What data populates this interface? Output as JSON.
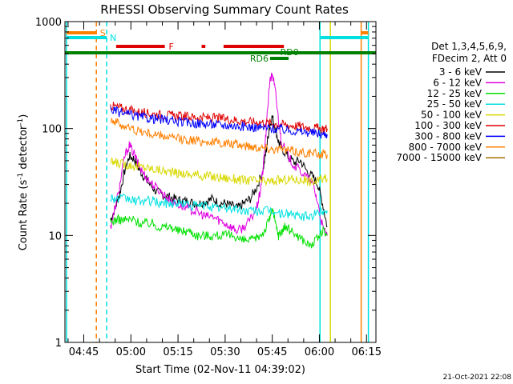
{
  "chart_data": {
    "type": "line",
    "title": "RHESSI Observing Summary Count Rates",
    "xlabel": "Start Time (02-Nov-11 04:39:02)",
    "ylabel_main": "Count Rate (s",
    "ylabel_sup1": "-1",
    "ylabel_mid": " detector",
    "ylabel_sup2": "-1",
    "ylabel_end": ")",
    "x_unit": "minutes since 04:39:02",
    "xlim": [
      0,
      99
    ],
    "ylim": [
      1,
      1000
    ],
    "yscale": "log",
    "xticks": [
      {
        "v": 6,
        "label": "04:45"
      },
      {
        "v": 21,
        "label": "05:00"
      },
      {
        "v": 36,
        "label": "05:15"
      },
      {
        "v": 51,
        "label": "05:30"
      },
      {
        "v": 66,
        "label": "05:45"
      },
      {
        "v": 81,
        "label": "06:00"
      },
      {
        "v": 96,
        "label": "06:15"
      }
    ],
    "yticks": [
      {
        "v": 1,
        "label": "1"
      },
      {
        "v": 10,
        "label": "10"
      },
      {
        "v": 100,
        "label": "100"
      },
      {
        "v": 1000,
        "label": "1000"
      }
    ],
    "legend_header": [
      "Det 1,3,4,5,6,9,",
      "FDecim 2, Att 0"
    ],
    "series": [
      {
        "name": "3 - 6 keV",
        "color": "#000000",
        "x": [
          14.5,
          16,
          17.5,
          19,
          20.5,
          22,
          23.5,
          25,
          27,
          29,
          31,
          33,
          35,
          37,
          39,
          41,
          43,
          45,
          47,
          49,
          51,
          53,
          55,
          57,
          59,
          61,
          63,
          64,
          65,
          66,
          67,
          68,
          69,
          71,
          73,
          75,
          77,
          79,
          80.5,
          82,
          83.5
        ],
        "y": [
          14,
          18,
          25,
          40,
          55,
          52,
          42,
          36,
          30,
          26,
          24,
          23,
          22,
          21,
          21,
          20,
          20,
          21,
          22,
          20,
          20,
          19,
          18,
          20,
          22,
          28,
          40,
          60,
          100,
          130,
          100,
          75,
          65,
          55,
          48,
          50,
          40,
          35,
          30,
          20,
          12
        ]
      },
      {
        "name": "6 - 12 keV",
        "color": "#e000e0",
        "x": [
          14.5,
          16,
          17.5,
          19,
          20.5,
          22,
          23.5,
          25,
          27,
          29,
          31,
          33,
          35,
          37,
          39,
          41,
          43,
          45,
          47,
          49,
          51,
          53,
          55,
          57,
          59,
          61,
          62,
          63,
          64,
          65,
          66,
          67,
          68,
          69,
          71,
          73,
          75,
          77,
          79,
          80.5,
          82,
          83.5
        ],
        "y": [
          12,
          18,
          30,
          55,
          70,
          58,
          45,
          38,
          32,
          28,
          25,
          22,
          20,
          19,
          18,
          17,
          16,
          15,
          15,
          14,
          13,
          12,
          11,
          12,
          14,
          18,
          24,
          40,
          90,
          250,
          330,
          220,
          120,
          75,
          55,
          45,
          40,
          35,
          30,
          20,
          12,
          10
        ]
      },
      {
        "name": "12 - 25 keV",
        "color": "#00e000",
        "x": [
          14.5,
          16,
          18,
          20,
          22,
          24,
          26,
          28,
          30,
          32,
          34,
          36,
          38,
          40,
          42,
          44,
          46,
          48,
          50,
          52,
          54,
          56,
          58,
          60,
          62,
          63.5,
          65,
          66,
          67,
          68,
          69,
          70,
          72,
          74,
          76,
          78,
          80,
          82,
          83.5
        ],
        "y": [
          13,
          14,
          14,
          14,
          14,
          13,
          13,
          13,
          12,
          12,
          12,
          11,
          11,
          11,
          10,
          10,
          10,
          10,
          10,
          10,
          10,
          9,
          9,
          9,
          10,
          11,
          14,
          18,
          13,
          10,
          11,
          12,
          11,
          10,
          9,
          8,
          9,
          11,
          10
        ]
      },
      {
        "name": "25 - 50 keV",
        "color": "#00e0e0",
        "x": [
          14.5,
          16,
          18,
          20,
          22,
          24,
          26,
          28,
          30,
          32,
          34,
          36,
          38,
          40,
          42,
          44,
          46,
          48,
          50,
          52,
          54,
          56,
          58,
          60,
          62,
          64,
          66,
          68,
          70,
          72,
          74,
          76,
          78,
          80,
          82,
          83.5
        ],
        "y": [
          23,
          22,
          22,
          22,
          21,
          21,
          21,
          21,
          20,
          20,
          20,
          20,
          20,
          19,
          19,
          19,
          19,
          18,
          18,
          18,
          18,
          17,
          17,
          17,
          17,
          17,
          17,
          16,
          16,
          16,
          15,
          15,
          15,
          16,
          17,
          17
        ]
      },
      {
        "name": "50 - 100 keV",
        "color": "#d8d800",
        "x": [
          14.5,
          16,
          18,
          20,
          22,
          24,
          26,
          28,
          30,
          32,
          34,
          36,
          38,
          40,
          42,
          44,
          46,
          48,
          50,
          52,
          54,
          56,
          58,
          60,
          62,
          64,
          66,
          68,
          70,
          72,
          74,
          76,
          78,
          80,
          82,
          83.5
        ],
        "y": [
          48,
          48,
          47,
          46,
          45,
          44,
          43,
          42,
          41,
          40,
          39,
          38,
          38,
          37,
          37,
          36,
          36,
          35,
          35,
          34,
          34,
          33,
          33,
          33,
          32,
          32,
          32,
          33,
          33,
          34,
          33,
          33,
          32,
          32,
          34,
          34
        ]
      },
      {
        "name": "100 - 300 keV",
        "color": "#e00000",
        "x": [
          14.5,
          16,
          18,
          20,
          22,
          24,
          26,
          28,
          30,
          32,
          34,
          36,
          38,
          40,
          42,
          44,
          46,
          48,
          50,
          52,
          54,
          56,
          58,
          60,
          62,
          64,
          66,
          68,
          70,
          72,
          74,
          76,
          78,
          80,
          82,
          83.5
        ],
        "y": [
          165,
          160,
          155,
          150,
          145,
          142,
          140,
          137,
          135,
          133,
          132,
          130,
          130,
          128,
          128,
          126,
          126,
          125,
          124,
          122,
          120,
          118,
          116,
          115,
          115,
          113,
          112,
          110,
          108,
          107,
          106,
          104,
          102,
          101,
          100,
          100
        ]
      },
      {
        "name": "300 - 800 keV",
        "color": "#0000ff",
        "x": [
          14.5,
          16,
          18,
          20,
          22,
          24,
          26,
          28,
          30,
          32,
          34,
          36,
          38,
          40,
          42,
          44,
          46,
          48,
          50,
          52,
          54,
          56,
          58,
          60,
          62,
          64,
          66,
          68,
          70,
          72,
          74,
          76,
          78,
          80,
          82,
          83.5
        ],
        "y": [
          150,
          145,
          140,
          136,
          132,
          128,
          126,
          124,
          122,
          120,
          118,
          116,
          114,
          113,
          112,
          111,
          110,
          109,
          108,
          107,
          106,
          105,
          104,
          103,
          102,
          101,
          100,
          99,
          97,
          96,
          94,
          93,
          92,
          90,
          88,
          88
        ]
      },
      {
        "name": "800 - 7000 keV",
        "color": "#ff8000",
        "x": [
          14.5,
          16,
          18,
          20,
          22,
          24,
          26,
          28,
          30,
          32,
          34,
          36,
          38,
          40,
          42,
          44,
          46,
          48,
          50,
          52,
          54,
          56,
          58,
          60,
          62,
          64,
          66,
          68,
          70,
          72,
          74,
          76,
          78,
          80,
          82,
          83.5
        ],
        "y": [
          125,
          115,
          108,
          102,
          98,
          94,
          91,
          88,
          86,
          84,
          82,
          80,
          79,
          78,
          77,
          76,
          75,
          74,
          73,
          72,
          71,
          70,
          69,
          68,
          67,
          66,
          65,
          64,
          63,
          62,
          61,
          60,
          59,
          58,
          57,
          57
        ]
      },
      {
        "name": "7000 - 15000 keV",
        "color": "#a07000",
        "x": [],
        "y": []
      }
    ],
    "vlines": [
      {
        "x": 0.5,
        "color": "#00e0e0",
        "dash": false
      },
      {
        "x": 10,
        "color": "#ff8000",
        "dash": true
      },
      {
        "x": 13.3,
        "color": "#00e0e0",
        "dash": true
      },
      {
        "x": 81.2,
        "color": "#00e0e0",
        "dash": false
      },
      {
        "x": 84.5,
        "color": "#d8d800",
        "dash": false
      },
      {
        "x": 94.3,
        "color": "#ff8000",
        "dash": false
      },
      {
        "x": 96.6,
        "color": "#00e0e0",
        "dash": false
      }
    ],
    "flags": [
      {
        "label": "S",
        "color": "#ff8000",
        "y": 41,
        "segments": [
          [
            0.5,
            10
          ],
          [
            94.3,
            96.6
          ]
        ]
      },
      {
        "label": "N",
        "color": "#00e0e0",
        "y": 47,
        "segments": [
          [
            0.5,
            13.3
          ],
          [
            81.2,
            96.6
          ]
        ]
      },
      {
        "label": "F",
        "color": "#e00000",
        "y": 58,
        "segments": [
          [
            16.3,
            31.8
          ],
          [
            43.5,
            44.7
          ],
          [
            50.5,
            69.7
          ]
        ]
      },
      {
        "label": "RD0",
        "color": "#008000",
        "y": 66,
        "segments": [
          [
            0,
            99
          ]
        ]
      },
      {
        "label": "RD6",
        "color": "#008000",
        "y": 73,
        "segments": [
          [
            65.3,
            71.2
          ]
        ]
      }
    ]
  },
  "footer_date": "21-Oct-2021 22:08"
}
